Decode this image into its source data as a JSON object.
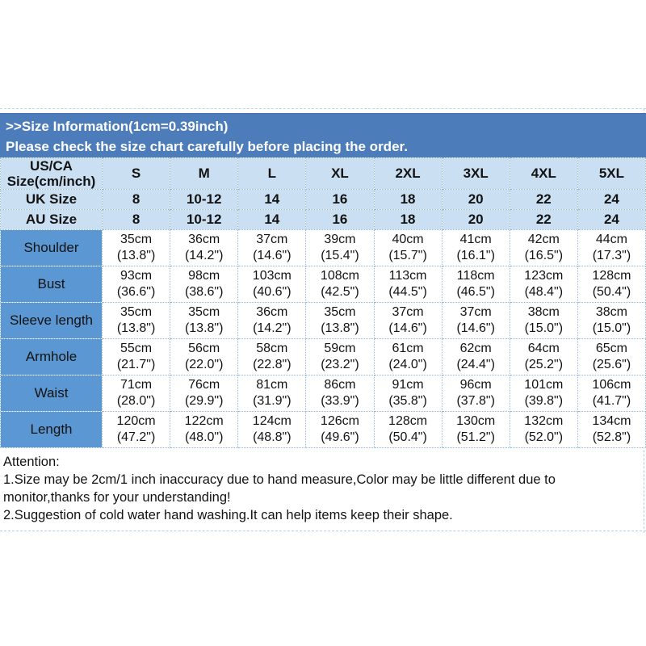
{
  "banner": {
    "line1": ">>Size Information(1cm=0.39inch)",
    "line2": "Please check the size chart carefully before placing the order."
  },
  "table": {
    "corner_lines": [
      "US/CA",
      "Size(cm/inch)"
    ],
    "size_columns": [
      "S",
      "M",
      "L",
      "XL",
      "2XL",
      "3XL",
      "4XL",
      "5XL"
    ],
    "uk_row": {
      "label": "UK Size",
      "values": [
        "8",
        "10-12",
        "14",
        "16",
        "18",
        "20",
        "22",
        "24"
      ]
    },
    "au_row": {
      "label": "AU Size",
      "values": [
        "8",
        "10-12",
        "14",
        "16",
        "18",
        "20",
        "22",
        "24"
      ]
    },
    "measure_rows": [
      {
        "label": "Shoulder",
        "cells": [
          [
            "35cm",
            "(13.8\")"
          ],
          [
            "36cm",
            "(14.2\")"
          ],
          [
            "37cm",
            "(14.6\")"
          ],
          [
            "39cm",
            "(15.4\")"
          ],
          [
            "40cm",
            "(15.7\")"
          ],
          [
            "41cm",
            "(16.1\")"
          ],
          [
            "42cm",
            "(16.5\")"
          ],
          [
            "44cm",
            "(17.3\")"
          ]
        ]
      },
      {
        "label": "Bust",
        "cells": [
          [
            "93cm",
            "(36.6\")"
          ],
          [
            "98cm",
            "(38.6\")"
          ],
          [
            "103cm",
            "(40.6\")"
          ],
          [
            "108cm",
            "(42.5\")"
          ],
          [
            "113cm",
            "(44.5\")"
          ],
          [
            "118cm",
            "(46.5\")"
          ],
          [
            "123cm",
            "(48.4\")"
          ],
          [
            "128cm",
            "(50.4\")"
          ]
        ]
      },
      {
        "label": "Sleeve length",
        "cells": [
          [
            "35cm",
            "(13.8\")"
          ],
          [
            "35cm",
            "(13.8\")"
          ],
          [
            "36cm",
            "(14.2\")"
          ],
          [
            "35cm",
            "(13.8\")"
          ],
          [
            "37cm",
            "(14.6\")"
          ],
          [
            "37cm",
            "(14.6\")"
          ],
          [
            "38cm",
            "(15.0\")"
          ],
          [
            "38cm",
            "(15.0\")"
          ]
        ]
      },
      {
        "label": "Armhole",
        "cells": [
          [
            "55cm",
            "(21.7\")"
          ],
          [
            "56cm",
            "(22.0\")"
          ],
          [
            "58cm",
            "(22.8\")"
          ],
          [
            "59cm",
            "(23.2\")"
          ],
          [
            "61cm",
            "(24.0\")"
          ],
          [
            "62cm",
            "(24.4\")"
          ],
          [
            "64cm",
            "(25.2\")"
          ],
          [
            "65cm",
            "(25.6\")"
          ]
        ]
      },
      {
        "label": "Waist",
        "cells": [
          [
            "71cm",
            "(28.0\")"
          ],
          [
            "76cm",
            "(29.9\")"
          ],
          [
            "81cm",
            "(31.9\")"
          ],
          [
            "86cm",
            "(33.9\")"
          ],
          [
            "91cm",
            "(35.8\")"
          ],
          [
            "96cm",
            "(37.8\")"
          ],
          [
            "101cm",
            "(39.8\")"
          ],
          [
            "106cm",
            "(41.7\")"
          ]
        ]
      },
      {
        "label": "Length",
        "cells": [
          [
            "120cm",
            "(47.2\")"
          ],
          [
            "122cm",
            "(48.0\")"
          ],
          [
            "124cm",
            "(48.8\")"
          ],
          [
            "126cm",
            "(49.6\")"
          ],
          [
            "128cm",
            "(50.4\")"
          ],
          [
            "130cm",
            "(51.2\")"
          ],
          [
            "132cm",
            "(52.0\")"
          ],
          [
            "134cm",
            "(52.8\")"
          ]
        ]
      }
    ]
  },
  "attention": {
    "heading": "Attention:",
    "item1": "1.Size may be 2cm/1 inch inaccuracy due to hand measure,Color may be little different due to monitor,thanks for your understanding!",
    "item2": "2.Suggestion of cold water hand washing.It can help items keep their shape."
  },
  "colors": {
    "banner-bg": "#4d7cba",
    "banner-text": "#ffffff",
    "header-bg": "#cbdff2",
    "label-col-bg": "#5b97d2",
    "grid-line": "#8fb6de",
    "cell-bg": "#ffffff",
    "text": "#131313",
    "dash-line": "#b6cbe2"
  }
}
